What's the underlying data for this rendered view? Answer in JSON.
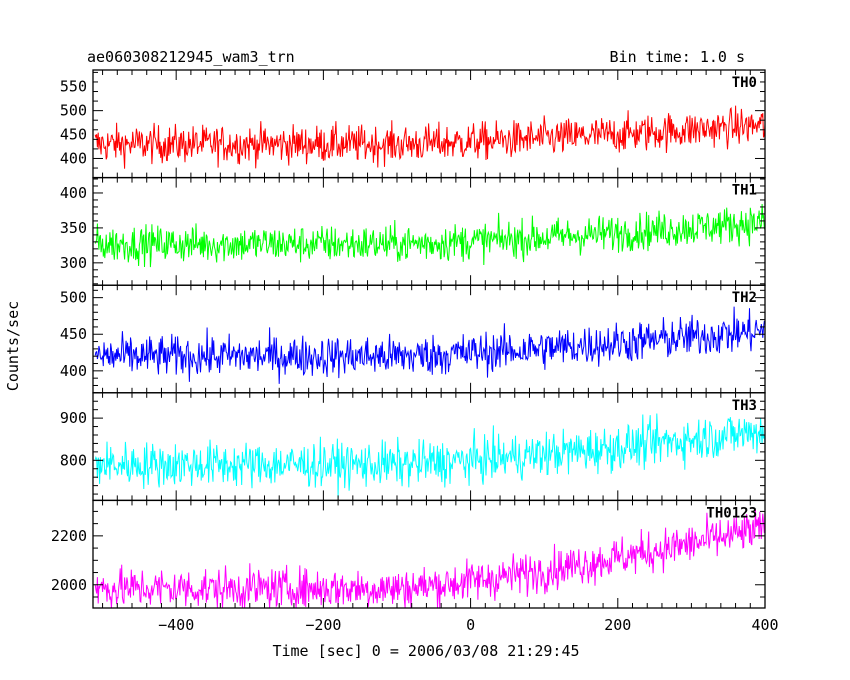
{
  "header": {
    "title": "ae060308212945_wam3_trn",
    "bin_time": "Bin time: 1.0 s"
  },
  "chart_data": {
    "type": "line",
    "xlabel": "Time [sec] 0 = 2006/03/08 21:29:45",
    "ylabel": "Counts/sec",
    "xlim": [
      -513,
      400
    ],
    "x_ticks": [
      -400,
      -200,
      0,
      200,
      400
    ],
    "x_tick_labels": [
      "−400",
      "−200",
      "0",
      "200",
      "400"
    ],
    "bin_time_s": 1.0,
    "panels": [
      {
        "name": "TH0",
        "color": "#ff0000",
        "ylim": [
          360,
          585
        ],
        "y_ticks": [
          400,
          450,
          500,
          550
        ],
        "y_tick_labels": [
          "400",
          "450",
          "500",
          "550"
        ],
        "mean_start": 430,
        "mean_end": 470,
        "noise": 28
      },
      {
        "name": "TH1",
        "color": "#00ff00",
        "ylim": [
          268,
          422
        ],
        "y_ticks": [
          300,
          350,
          400
        ],
        "y_tick_labels": [
          "300",
          "350",
          "400"
        ],
        "mean_start": 327,
        "mean_end": 358,
        "noise": 19
      },
      {
        "name": "TH2",
        "color": "#0000ff",
        "ylim": [
          370,
          517
        ],
        "y_ticks": [
          400,
          450,
          500
        ],
        "y_tick_labels": [
          "400",
          "450",
          "500"
        ],
        "mean_start": 420,
        "mean_end": 455,
        "noise": 20
      },
      {
        "name": "TH3",
        "color": "#00ffff",
        "ylim": [
          705,
          960
        ],
        "y_ticks": [
          800,
          900
        ],
        "y_tick_labels": [
          "800",
          "900"
        ],
        "mean_start": 790,
        "mean_end": 870,
        "noise": 38
      },
      {
        "name": "TH0123",
        "color": "#ff00ff",
        "ylim": [
          1905,
          2345
        ],
        "y_ticks": [
          2000,
          2200
        ],
        "y_tick_labels": [
          "2000",
          "2200"
        ],
        "mean_start": 1985,
        "mean_end": 2230,
        "noise": 60
      }
    ]
  }
}
